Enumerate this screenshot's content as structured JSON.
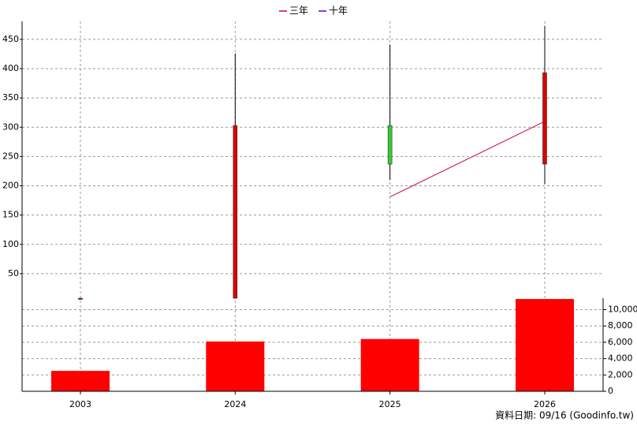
{
  "chart_data": [
    {
      "type": "candlestick",
      "categories": [
        "2003",
        "2024",
        "2025",
        "2026"
      ],
      "open": [
        8,
        8,
        303,
        237
      ],
      "high": [
        9,
        426,
        441,
        473
      ],
      "low": [
        7,
        8,
        210,
        203
      ],
      "close": [
        8,
        303,
        237,
        393
      ],
      "up_color": "#dd0000",
      "down_color": "#33cc33",
      "series": [
        {
          "name": "三年",
          "color": "#cc0044",
          "values": [
            null,
            null,
            181,
            310
          ]
        },
        {
          "name": "十年",
          "color": "#6600cc",
          "values": [
            null,
            null,
            null,
            null
          ]
        }
      ],
      "ylim": [
        0,
        480
      ],
      "yticks": [
        50,
        100,
        150,
        200,
        250,
        300,
        350,
        400,
        450
      ],
      "grid": true,
      "legend": "top"
    },
    {
      "type": "bar",
      "values": [
        2500,
        6100,
        6400,
        11300
      ],
      "color": "#ff0000",
      "ylim": [
        0,
        11400
      ],
      "yticks": [
        0,
        {
          "value": 2000,
          "label": "2,000"
        },
        {
          "value": 4000,
          "label": "4,000"
        },
        {
          "value": 6000,
          "label": "6,000"
        },
        {
          "value": 8000,
          "label": "8,000"
        },
        {
          "value": 10000,
          "label": "10,000"
        }
      ],
      "grid": true,
      "axis_side": "right"
    }
  ],
  "footer": "資料日期: 09/16  (Goodinfo.tw)"
}
